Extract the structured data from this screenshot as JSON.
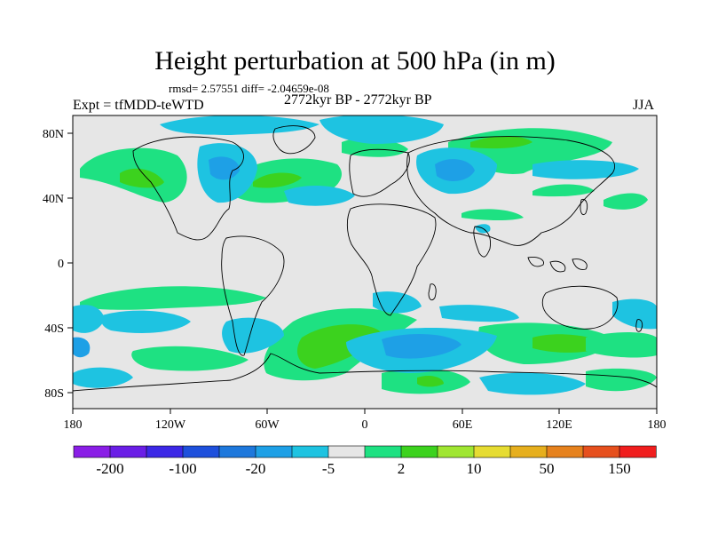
{
  "title": "Height perturbation at 500 hPa (in m)",
  "stats": "rmsd= 2.57551 diff= -2.04659e-08",
  "experiment": "Expt = tfMDD-teWTD",
  "period": "2772kyr BP - 2772kyr BP",
  "season": "JJA",
  "lat_ticks": [
    "80N",
    "40N",
    "0",
    "40S",
    "80S"
  ],
  "lon_ticks": [
    "180",
    "120W",
    "60W",
    "0",
    "60E",
    "120E",
    "180"
  ],
  "colorbar": {
    "labels": [
      "-200",
      "-100",
      "-20",
      "-5",
      "2",
      "10",
      "50",
      "150"
    ],
    "colors": [
      "#8a1ee6",
      "#6a1ee6",
      "#3c28e6",
      "#1e50dc",
      "#1e78dc",
      "#1ea0e6",
      "#1ec3e1",
      "#e6e6e6",
      "#1ee182",
      "#3cd21e",
      "#a0e632",
      "#e6dc32",
      "#e6af1e",
      "#e6821e",
      "#e6501e",
      "#f01e1e"
    ]
  },
  "palette": {
    "land_bg": "#e6e6e6",
    "coast": "#000000"
  }
}
